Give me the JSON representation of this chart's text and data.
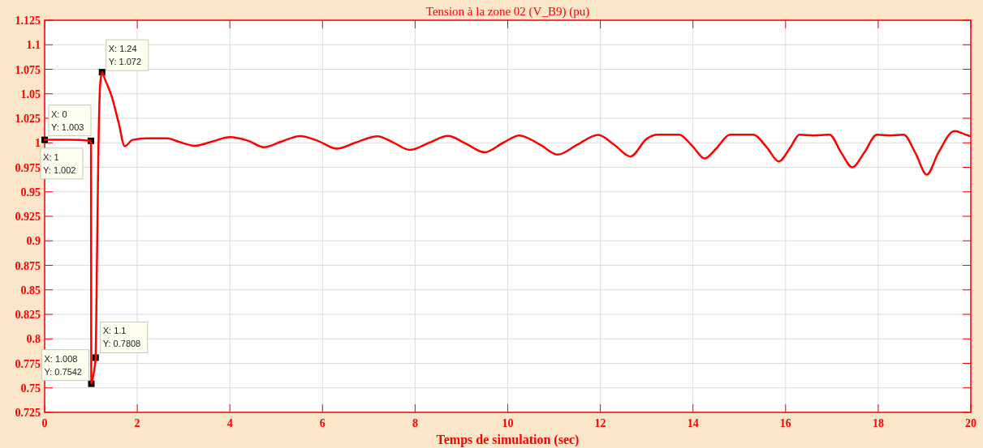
{
  "chart_data": {
    "type": "line",
    "title": "Tension à la zone 02 (V_B9) (pu)",
    "xlabel": "Temps de simulation (sec)",
    "xlim": [
      0,
      20
    ],
    "xticks": [
      0,
      2,
      4,
      6,
      8,
      10,
      12,
      14,
      16,
      18,
      20
    ],
    "ylim": [
      0.725,
      1.125
    ],
    "yticks": [
      0.725,
      0.75,
      0.775,
      0.8,
      0.825,
      0.85,
      0.875,
      0.9,
      0.925,
      0.95,
      0.975,
      1,
      1.025,
      1.05,
      1.075,
      1.1,
      1.125
    ],
    "grid": true,
    "line_style": "solid",
    "marker": "none",
    "series": [
      {
        "color": "#ff0000",
        "x": [
          0,
          0.5,
          1,
          1.008,
          1.06,
          1.1,
          1.13,
          1.16,
          1.2,
          1.24,
          1.3,
          1.45,
          1.6,
          1.73,
          1.9,
          2.2,
          2.65,
          2.9,
          3.24,
          3.6,
          4.0,
          4.4,
          4.73,
          5.1,
          5.52,
          5.9,
          6.31,
          6.7,
          7.19,
          7.5,
          7.89,
          8.3,
          8.71,
          9.1,
          9.5,
          9.9,
          10.25,
          10.7,
          11.08,
          11.5,
          11.95,
          12.3,
          12.65,
          13.0,
          13.23,
          13.7,
          14.0,
          14.25,
          14.5,
          14.8,
          15.3,
          15.6,
          15.85,
          16.1,
          16.3,
          16.6,
          16.95,
          17.2,
          17.44,
          17.7,
          17.97,
          18.25,
          18.55,
          18.8,
          19.05,
          19.3,
          19.65,
          19.85,
          19.97
        ],
        "values": [
          1.003,
          1.003,
          1.002,
          0.7542,
          0.765,
          0.7808,
          0.88,
          0.99,
          1.06,
          1.072,
          1.065,
          1.047,
          1.02,
          0.9965,
          1.003,
          1.0045,
          1.0045,
          1.001,
          0.997,
          1.001,
          1.0058,
          1.002,
          0.9955,
          1.001,
          1.0069,
          1.002,
          0.994,
          1.0,
          1.0067,
          1.001,
          0.9928,
          1.0,
          1.007,
          0.999,
          0.9903,
          1.0,
          1.0075,
          0.998,
          0.988,
          0.998,
          1.008,
          0.998,
          0.986,
          1.004,
          1.0083,
          1.0083,
          0.996,
          0.984,
          0.994,
          1.0083,
          1.0083,
          0.995,
          0.981,
          0.995,
          1.0083,
          1.0075,
          1.0083,
          0.99,
          0.975,
          0.99,
          1.0083,
          1.0075,
          1.0083,
          0.99,
          0.9675,
          0.99,
          1.012,
          1.009,
          1.007
        ]
      }
    ],
    "annotations": [
      {
        "text": "X: 0\nY: 1.003",
        "x": 0,
        "y": 1.003
      },
      {
        "text": "X: 1\nY: 1.002",
        "x": 1,
        "y": 1.002
      },
      {
        "text": "X: 1.24\nY: 1.072",
        "x": 1.24,
        "y": 1.072
      },
      {
        "text": "X: 1.1\nY: 0.7808",
        "x": 1.1,
        "y": 0.7808
      },
      {
        "text": "X: 1.008\nY: 0.7542",
        "x": 1.008,
        "y": 0.7542
      }
    ]
  }
}
